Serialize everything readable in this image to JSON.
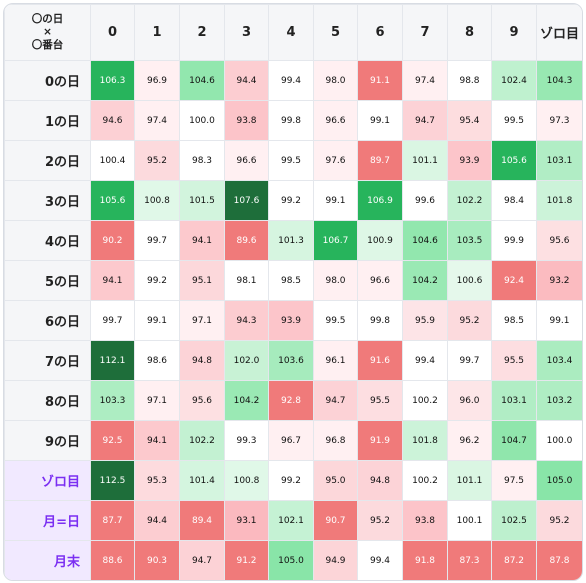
{
  "corner_label": [
    "〇の日",
    "×",
    "〇番台"
  ],
  "columns": [
    "0",
    "1",
    "2",
    "3",
    "4",
    "5",
    "6",
    "7",
    "8",
    "9",
    "ゾロ目"
  ],
  "rows": [
    {
      "label": "0の日",
      "special": false,
      "values": [
        106.3,
        96.9,
        104.6,
        94.4,
        99.4,
        98.0,
        91.1,
        97.4,
        98.8,
        102.4,
        104.3
      ]
    },
    {
      "label": "1の日",
      "special": false,
      "values": [
        94.6,
        97.4,
        100.0,
        93.8,
        99.8,
        96.6,
        99.1,
        94.7,
        95.4,
        99.5,
        97.3
      ]
    },
    {
      "label": "2の日",
      "special": false,
      "values": [
        100.4,
        95.2,
        98.3,
        96.6,
        99.5,
        97.6,
        89.7,
        101.1,
        93.9,
        105.6,
        103.1
      ]
    },
    {
      "label": "3の日",
      "special": false,
      "values": [
        105.6,
        100.8,
        101.5,
        107.6,
        99.2,
        99.1,
        106.9,
        99.6,
        102.2,
        98.4,
        101.8
      ]
    },
    {
      "label": "4の日",
      "special": false,
      "values": [
        90.2,
        99.7,
        94.1,
        89.6,
        101.3,
        106.7,
        100.9,
        104.6,
        103.5,
        99.9,
        95.6
      ]
    },
    {
      "label": "5の日",
      "special": false,
      "values": [
        94.1,
        99.2,
        95.1,
        98.1,
        98.5,
        98.0,
        96.6,
        104.2,
        100.6,
        92.4,
        93.2
      ]
    },
    {
      "label": "6の日",
      "special": false,
      "values": [
        99.7,
        99.1,
        97.1,
        94.3,
        93.9,
        99.5,
        99.8,
        95.9,
        95.2,
        98.5,
        99.1
      ]
    },
    {
      "label": "7の日",
      "special": false,
      "values": [
        112.1,
        98.6,
        94.8,
        102.0,
        103.6,
        96.1,
        91.6,
        99.4,
        99.7,
        95.5,
        103.4
      ]
    },
    {
      "label": "8の日",
      "special": false,
      "values": [
        103.3,
        97.1,
        95.6,
        104.2,
        92.8,
        94.7,
        95.5,
        100.2,
        96.0,
        103.1,
        103.2
      ]
    },
    {
      "label": "9の日",
      "special": false,
      "values": [
        92.5,
        94.1,
        102.2,
        99.3,
        96.7,
        96.8,
        91.9,
        101.8,
        96.2,
        104.7,
        100.0
      ]
    },
    {
      "label": "ゾロ目",
      "special": true,
      "values": [
        112.5,
        95.3,
        101.4,
        100.8,
        99.2,
        95.0,
        94.8,
        100.2,
        101.1,
        97.5,
        105.0
      ]
    },
    {
      "label": "月=日",
      "special": true,
      "values": [
        87.7,
        94.4,
        89.4,
        93.1,
        102.1,
        90.7,
        95.2,
        93.8,
        100.1,
        102.5,
        95.2
      ]
    },
    {
      "label": "月末",
      "special": true,
      "values": [
        88.6,
        90.3,
        94.7,
        91.2,
        105.0,
        94.9,
        99.4,
        91.8,
        87.3,
        87.2,
        87.8
      ]
    }
  ]
}
